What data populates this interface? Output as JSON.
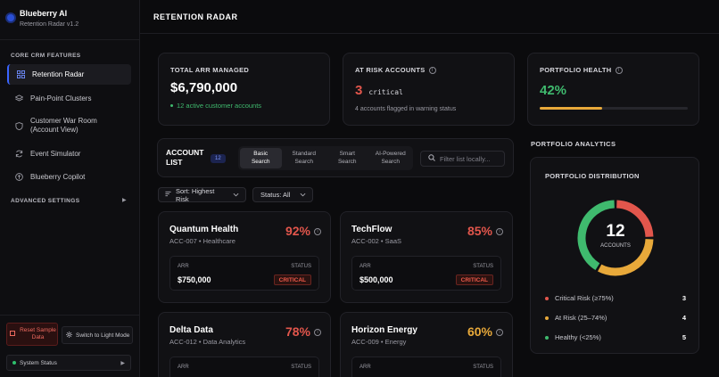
{
  "sidebar": {
    "brand_title": "Blueberry AI",
    "brand_sub": "Retention Radar v1.2",
    "section_core": "CORE CRM FEATURES",
    "items": [
      {
        "label": "Retention Radar",
        "icon": "grid-icon",
        "active": true
      },
      {
        "label": "Pain-Point Clusters",
        "icon": "layers-icon",
        "active": false
      },
      {
        "label": "Customer War Room (Account View)",
        "icon": "shield-icon",
        "active": false
      },
      {
        "label": "Event Simulator",
        "icon": "refresh-icon",
        "active": false
      },
      {
        "label": "Blueberry Copilot",
        "icon": "copilot-icon",
        "active": false
      }
    ],
    "section_advanced": "ADVANCED SETTINGS",
    "reset_label": "Reset Sample Data",
    "light_mode_label": "Switch to Light Mode",
    "system_status_label": "System Status"
  },
  "header": {
    "title": "RETENTION RADAR"
  },
  "kpis": {
    "arr": {
      "label": "TOTAL ARR MANAGED",
      "value": "$6,790,000",
      "note": "12 active customer accounts"
    },
    "at_risk": {
      "label": "AT RISK ACCOUNTS",
      "value": "3",
      "tag": "critical",
      "note": "4 accounts flagged in warning status"
    },
    "health": {
      "label": "PORTFOLIO HEALTH",
      "value": "42%",
      "progress": 0.42
    }
  },
  "account_list": {
    "title_line1": "ACCOUNT",
    "title_line2": "LIST",
    "count": "12",
    "search_tabs": [
      "Basic Search",
      "Standard Search",
      "Smart Search",
      "AI-Powered Search"
    ],
    "active_tab": 0,
    "filter_placeholder": "Filter list locally...",
    "sort_label": "Sort: Highest Risk",
    "status_label": "Status: All",
    "cards": [
      {
        "name": "Quantum Health",
        "sub": "ACC-007 • Healthcare",
        "pct": "92%",
        "arr_label": "ARR",
        "arr": "$750,000",
        "status_label": "STATUS",
        "status": "CRITICAL"
      },
      {
        "name": "TechFlow",
        "sub": "ACC-002 • SaaS",
        "pct": "85%",
        "arr_label": "ARR",
        "arr": "$500,000",
        "status_label": "STATUS",
        "status": "CRITICAL"
      },
      {
        "name": "Delta Data",
        "sub": "ACC-012 • Data Analytics",
        "pct": "78%",
        "arr_label": "ARR",
        "arr": "",
        "status_label": "STATUS",
        "status": ""
      },
      {
        "name": "Horizon Energy",
        "sub": "ACC-009 • Energy",
        "pct": "60%",
        "arr_label": "ARR",
        "arr": "",
        "status_label": "STATUS",
        "status": ""
      }
    ]
  },
  "analytics": {
    "section_title": "PORTFOLIO ANALYTICS",
    "card_title": "PORTFOLIO DISTRIBUTION",
    "center_value": "12",
    "center_label": "ACCOUNTS",
    "legend": [
      {
        "label": "Critical Risk (≥75%)",
        "value": "3",
        "color": "#e2564c"
      },
      {
        "label": "At Risk (25–74%)",
        "value": "4",
        "color": "#e8a93a"
      },
      {
        "label": "Healthy (<25%)",
        "value": "5",
        "color": "#3fba6e"
      }
    ]
  },
  "colors": {
    "accent": "#3a64ff",
    "critical": "#e2564c",
    "warning": "#e8a93a",
    "healthy": "#3fba6e"
  }
}
